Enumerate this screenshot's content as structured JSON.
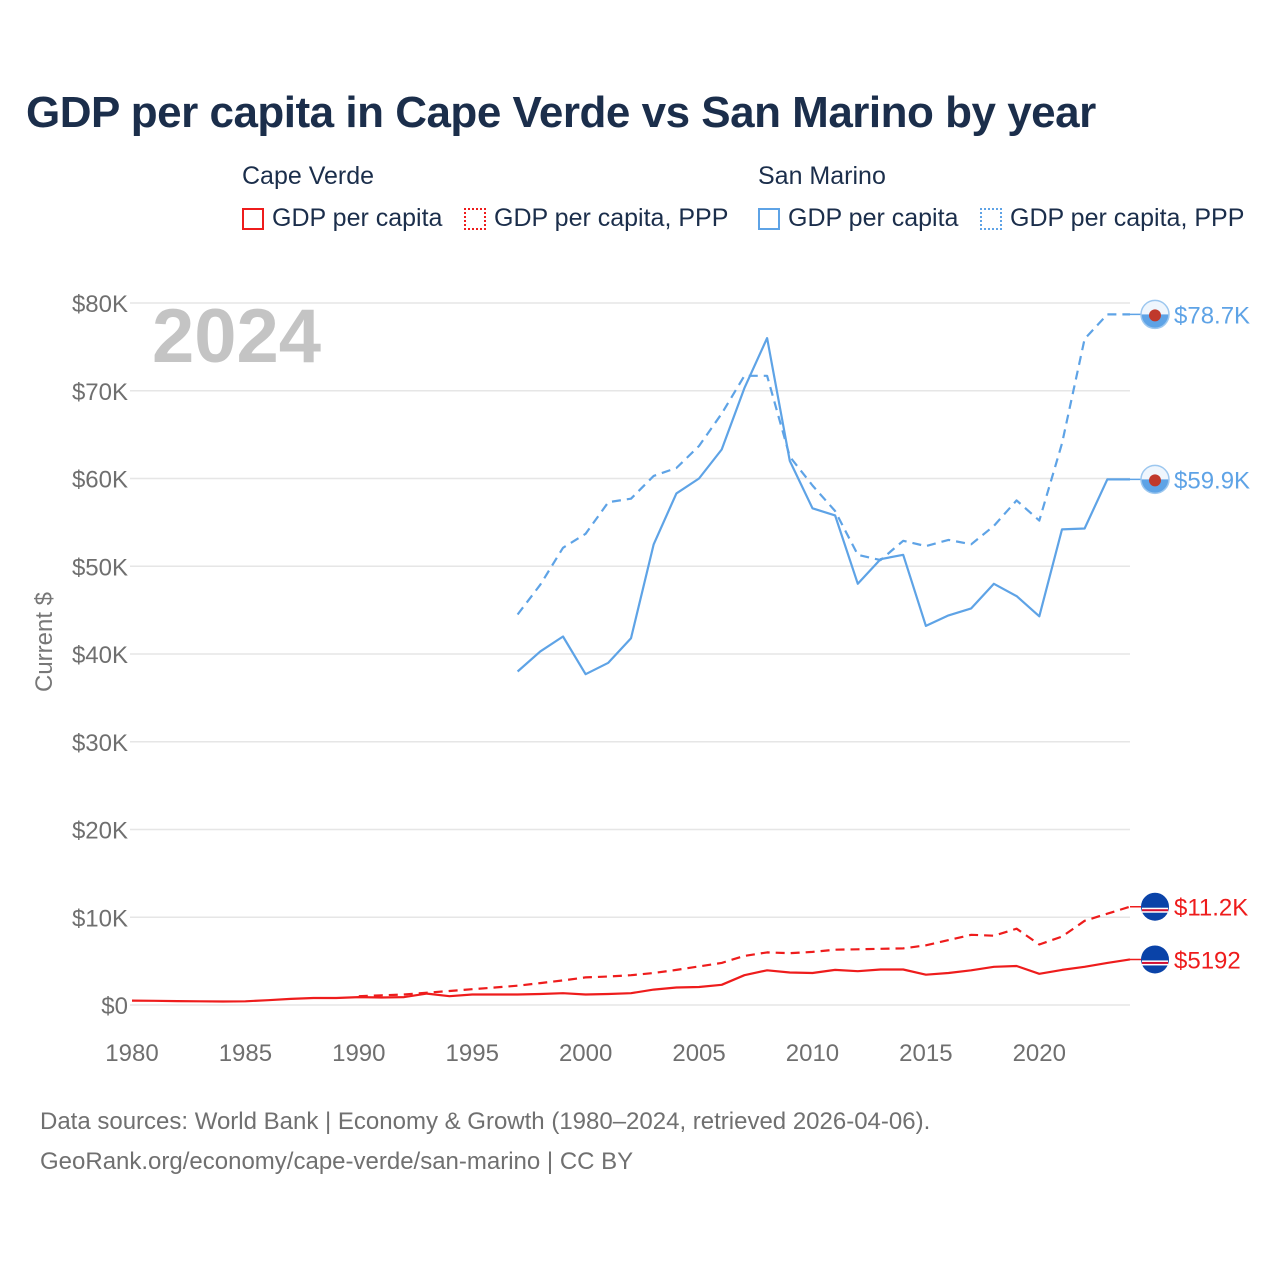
{
  "chart_data": {
    "type": "line",
    "title": "GDP per capita in Cape Verde vs San Marino by year",
    "year_watermark": "2024",
    "ylabel": "Current $",
    "xlabel": "",
    "xlim": [
      1980,
      2024
    ],
    "ylim": [
      0,
      80000
    ],
    "grid": true,
    "x_ticks": [
      "1980",
      "1985",
      "1990",
      "1995",
      "2000",
      "2005",
      "2010",
      "2015",
      "2020"
    ],
    "x_tick_values": [
      1980,
      1985,
      1990,
      1995,
      2000,
      2005,
      2010,
      2015,
      2020
    ],
    "y_ticks": [
      "$0",
      "$10K",
      "$20K",
      "$30K",
      "$40K",
      "$50K",
      "$60K",
      "$70K",
      "$80K"
    ],
    "y_tick_values": [
      0,
      10000,
      20000,
      30000,
      40000,
      50000,
      60000,
      70000,
      80000
    ],
    "legend": {
      "groups": [
        {
          "country": "Cape Verde",
          "items": [
            "GDP per capita",
            "GDP per capita, PPP"
          ],
          "color": "#ee1c1c"
        },
        {
          "country": "San Marino",
          "items": [
            "GDP per capita",
            "GDP per capita, PPP"
          ],
          "color": "#5ea3e6"
        }
      ]
    },
    "series": [
      {
        "name": "Cape Verde GDP per capita",
        "country": "Cape Verde",
        "style": "solid",
        "color": "#ee1c1c",
        "end_label": "$5192",
        "x": [
          1980,
          1981,
          1982,
          1983,
          1984,
          1985,
          1986,
          1987,
          1988,
          1989,
          1990,
          1991,
          1992,
          1993,
          1994,
          1995,
          1996,
          1997,
          1998,
          1999,
          2000,
          2001,
          2002,
          2003,
          2004,
          2005,
          2006,
          2007,
          2008,
          2009,
          2010,
          2011,
          2012,
          2013,
          2014,
          2015,
          2016,
          2017,
          2018,
          2019,
          2020,
          2021,
          2022,
          2023,
          2024
        ],
        "values": [
          500,
          480,
          450,
          420,
          400,
          420,
          550,
          700,
          800,
          800,
          900,
          850,
          900,
          1300,
          1000,
          1200,
          1200,
          1200,
          1250,
          1350,
          1200,
          1250,
          1350,
          1750,
          2000,
          2050,
          2300,
          3400,
          3950,
          3700,
          3650,
          4000,
          3850,
          4050,
          4050,
          3450,
          3650,
          3950,
          4350,
          4450,
          3550,
          4000,
          4350,
          4800,
          5192
        ]
      },
      {
        "name": "Cape Verde GDP per capita, PPP",
        "country": "Cape Verde",
        "style": "dashed",
        "color": "#ee1c1c",
        "end_label": "$11.2K",
        "x": [
          1990,
          1991,
          1992,
          1993,
          1994,
          1995,
          1996,
          1997,
          1998,
          1999,
          2000,
          2001,
          2002,
          2003,
          2004,
          2005,
          2006,
          2007,
          2008,
          2009,
          2010,
          2011,
          2012,
          2013,
          2014,
          2015,
          2016,
          2017,
          2018,
          2019,
          2020,
          2021,
          2022,
          2023,
          2024
        ],
        "values": [
          1000,
          1100,
          1200,
          1400,
          1600,
          1800,
          2000,
          2200,
          2500,
          2800,
          3150,
          3250,
          3400,
          3650,
          4000,
          4400,
          4800,
          5600,
          6000,
          5900,
          6050,
          6300,
          6350,
          6400,
          6450,
          6800,
          7400,
          8000,
          7900,
          8700,
          6900,
          7800,
          9600,
          10400,
          11200
        ]
      },
      {
        "name": "San Marino GDP per capita",
        "country": "San Marino",
        "style": "solid",
        "color": "#5ea3e6",
        "end_label": "$59.9K",
        "x": [
          1997,
          1998,
          1999,
          2000,
          2001,
          2002,
          2003,
          2004,
          2005,
          2006,
          2007,
          2008,
          2009,
          2010,
          2011,
          2012,
          2013,
          2014,
          2015,
          2016,
          2017,
          2018,
          2019,
          2020,
          2021,
          2022,
          2023,
          2024
        ],
        "values": [
          38000,
          40300,
          42000,
          37700,
          39000,
          41800,
          52500,
          58300,
          60000,
          63300,
          70300,
          76000,
          62000,
          56600,
          55800,
          48000,
          50800,
          51300,
          43200,
          44400,
          45200,
          48000,
          46600,
          44300,
          54200,
          54300,
          59900,
          59900
        ]
      },
      {
        "name": "San Marino GDP per capita, PPP",
        "country": "San Marino",
        "style": "dashed",
        "color": "#5ea3e6",
        "end_label": "$78.7K",
        "x": [
          1997,
          1998,
          1999,
          2000,
          2001,
          2002,
          2003,
          2004,
          2005,
          2006,
          2007,
          2008,
          2009,
          2010,
          2011,
          2012,
          2013,
          2014,
          2015,
          2016,
          2017,
          2018,
          2019,
          2020,
          2021,
          2022,
          2023,
          2024
        ],
        "values": [
          44500,
          47900,
          52100,
          53700,
          57300,
          57700,
          60300,
          61200,
          63700,
          67400,
          71700,
          71700,
          62500,
          59200,
          56300,
          51300,
          50700,
          52900,
          52300,
          53000,
          52500,
          54600,
          57500,
          55200,
          64000,
          75900,
          78700,
          78700
        ]
      }
    ]
  },
  "footer": {
    "line1": "Data sources: World Bank | Economy & Growth (1980–2024, retrieved 2026-04-06).",
    "line2": "GeoRank.org/economy/cape-verde/san-marino | CC BY"
  }
}
